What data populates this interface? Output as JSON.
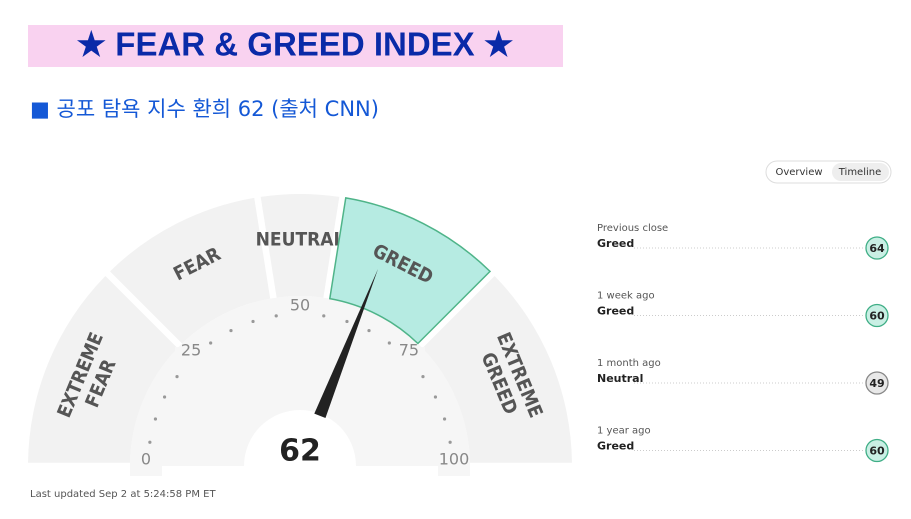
{
  "header": {
    "title": "★ FEAR & GREED INDEX ★",
    "subtitle": "■ 공포 탐욕 지수 환희 62 (출처 CNN)"
  },
  "tabs": [
    "Overview",
    "Timeline"
  ],
  "gauge": {
    "value": 62,
    "range": [
      0,
      100
    ],
    "ticks": [
      0,
      25,
      50,
      75,
      100
    ],
    "bounds": [
      0,
      25,
      45,
      55,
      75,
      100
    ],
    "segments": [
      {
        "lines": [
          "EXTREME",
          "FEAR"
        ]
      },
      {
        "lines": [
          "FEAR"
        ]
      },
      {
        "lines": [
          "NEUTRAL"
        ]
      },
      {
        "lines": [
          "GREED"
        ]
      },
      {
        "lines": [
          "EXTREME",
          "GREED"
        ]
      }
    ],
    "active": 3
  },
  "updated": "Last updated Sep 2 at 5:24:58 PM ET",
  "history": [
    {
      "label": "Previous close",
      "rating": "Greed",
      "value": 64
    },
    {
      "label": "1 week ago",
      "rating": "Greed",
      "value": 60
    },
    {
      "label": "1 month ago",
      "rating": "Neutral",
      "value": 49
    },
    {
      "label": "1 year ago",
      "rating": "Greed",
      "value": 60
    }
  ]
}
